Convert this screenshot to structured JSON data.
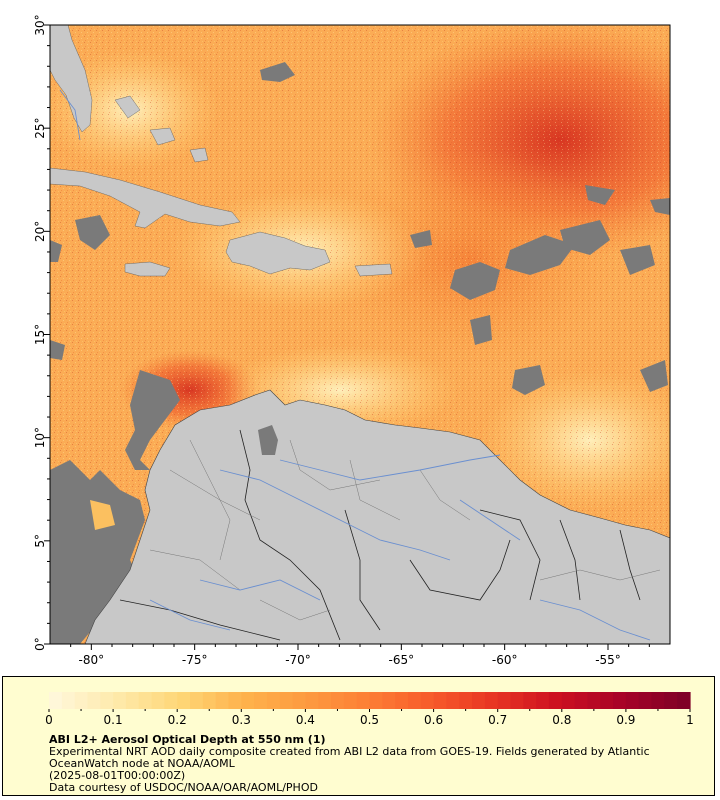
{
  "map": {
    "title": "ABI L2+ Aerosol Optical Depth at 550 nm (1)",
    "lon_range": [
      -82,
      -52
    ],
    "lat_range": [
      0,
      30
    ],
    "x_ticks": [
      "-80°",
      "-75°",
      "-70°",
      "-65°",
      "-60°",
      "-55°"
    ],
    "y_ticks": [
      "30°",
      "25°",
      "20°",
      "15°",
      "10°",
      "5°",
      "0°"
    ],
    "land_color": "#c8c8c8",
    "nodata_color": "#7a7a7a",
    "river_color": "#6a8fd0"
  },
  "colorbar": {
    "min": 0,
    "max": 1,
    "tick_labels": [
      "0",
      "0.1",
      "0.2",
      "0.3",
      "0.4",
      "0.5",
      "0.6",
      "0.7",
      "0.8",
      "0.9",
      "1"
    ],
    "colors": [
      "#fff7d9",
      "#fee9a9",
      "#fed676",
      "#feb24c",
      "#fd9a40",
      "#fd7e35",
      "#f75a2a",
      "#e73423",
      "#cc1020",
      "#a80327",
      "#800026"
    ]
  },
  "legend": {
    "title": "ABI L2+ Aerosol Optical Depth at 550 nm (1)",
    "description": "Experimental NRT AOD daily composite created from ABI L2 data from GOES-19. Fields generated by Atlantic OceanWatch node at NOAA/AOML",
    "date": "(2025-08-01T00:00:00Z)",
    "credit": "Data courtesy of USDOC/NOAA/OAR/AOML/PHOD"
  },
  "chart_data": {
    "type": "heatmap",
    "title": "ABI L2+ Aerosol Optical Depth at 550 nm (1)",
    "xlim": [
      -82,
      -52
    ],
    "ylim": [
      0,
      30
    ],
    "color_scale": {
      "min": 0,
      "max": 1
    }
  }
}
